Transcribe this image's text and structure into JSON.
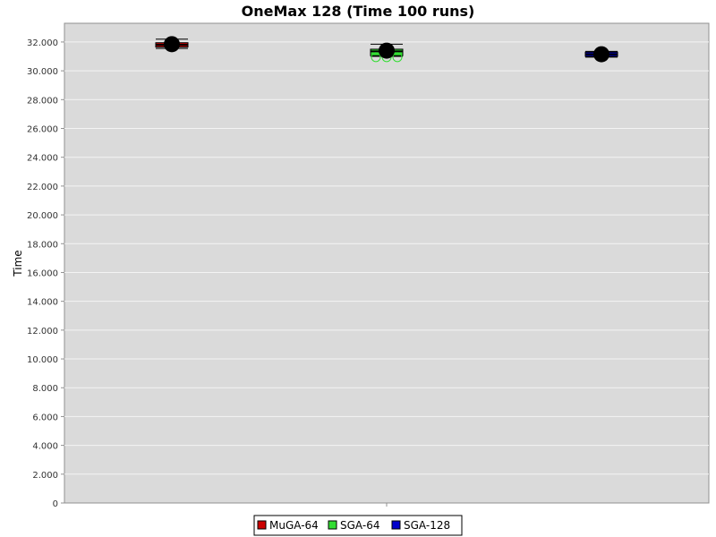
{
  "chart_data": {
    "type": "box",
    "title": "OneMax 128 (Time 100 runs)",
    "xlabel": "",
    "ylabel": "Time",
    "ylim": [
      0,
      33300
    ],
    "yticks": [
      0,
      2000,
      4000,
      6000,
      8000,
      10000,
      12000,
      14000,
      16000,
      18000,
      20000,
      22000,
      24000,
      26000,
      28000,
      30000,
      32000
    ],
    "ytick_labels": [
      "0",
      "2.000",
      "4.000",
      "6.000",
      "8.000",
      "10.000",
      "12.000",
      "14.000",
      "16.000",
      "18.000",
      "20.000",
      "22.000",
      "24.000",
      "26.000",
      "28.000",
      "30.000",
      "32.000"
    ],
    "grid": true,
    "legend_position": "bottom",
    "series": [
      {
        "name": "MuGA-64",
        "color": "#cc0000",
        "whisker_low": 31550,
        "q1": 31650,
        "median": 31800,
        "q3": 31950,
        "whisker_high": 32200,
        "mean": 31850,
        "outliers": []
      },
      {
        "name": "SGA-64",
        "color": "#33dd33",
        "whisker_low": 31000,
        "q1": 31050,
        "median": 31350,
        "q3": 31500,
        "whisker_high": 31850,
        "mean": 31400,
        "outliers": [
          30950,
          30950,
          30950
        ]
      },
      {
        "name": "SGA-128",
        "color": "#0000cc",
        "whisker_low": 30950,
        "q1": 31000,
        "median": 31150,
        "q3": 31300,
        "whisker_high": 31350,
        "mean": 31150,
        "outliers": []
      }
    ]
  }
}
